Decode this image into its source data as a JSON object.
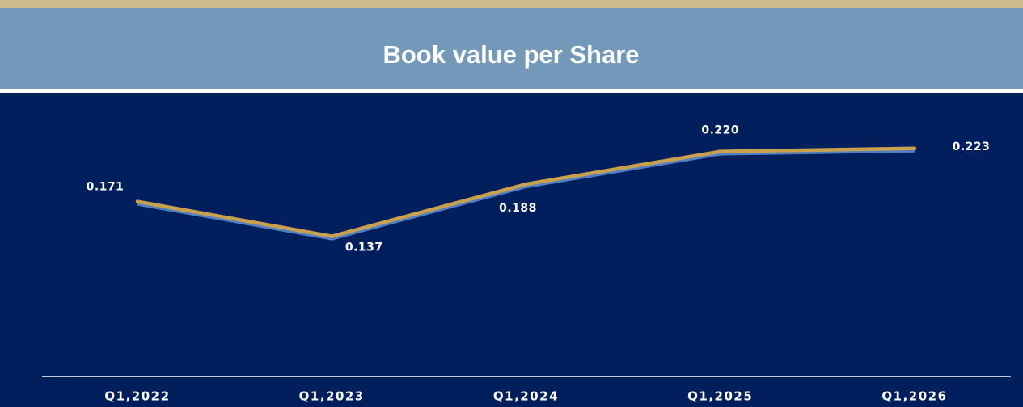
{
  "chart_data": {
    "type": "line",
    "title": "Book value per Share",
    "categories": [
      "Q1,2022",
      "Q1,2023",
      "Q1,2024",
      "Q1,2025",
      "Q1,2026"
    ],
    "values": [
      0.171,
      0.137,
      0.188,
      0.22,
      0.223
    ],
    "value_labels": [
      "0.171",
      "0.137",
      "0.188",
      "0.220",
      "0.223"
    ],
    "color": "#c9a14e",
    "ylim": [
      0,
      0.275
    ]
  }
}
